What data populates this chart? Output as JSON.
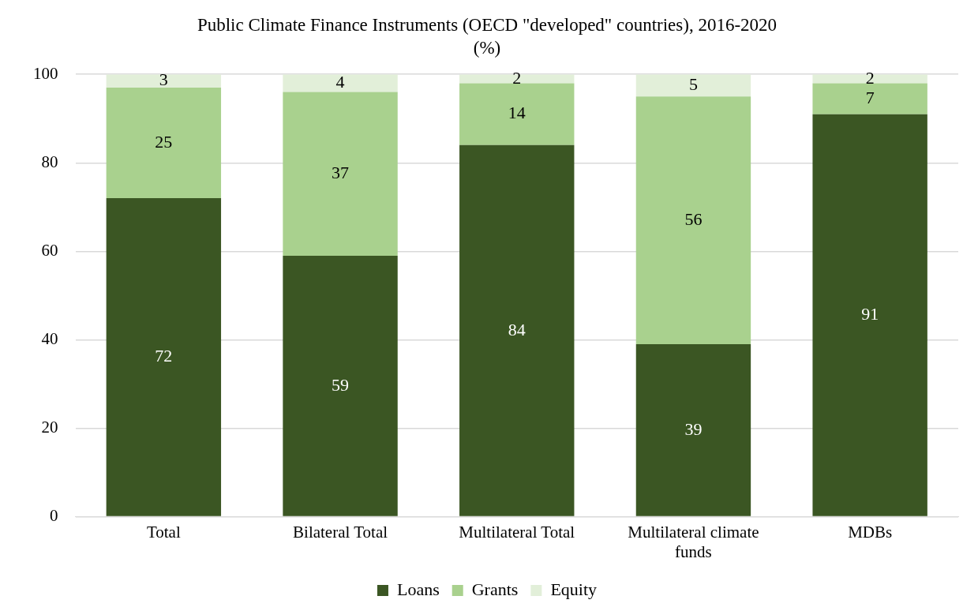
{
  "chart_data": {
    "type": "bar",
    "title": "Public Climate Finance Instruments (OECD \"developed\" countries), 2016-2020",
    "subtitle": "(%)",
    "categories": [
      "Total",
      "Bilateral Total",
      "Multilateral Total",
      "Multilateral climate funds",
      "MDBs"
    ],
    "series": [
      {
        "name": "Loans",
        "color": "#3b5623",
        "values": [
          72,
          59,
          84,
          39,
          91
        ]
      },
      {
        "name": "Grants",
        "color": "#a9d18e",
        "values": [
          25,
          37,
          14,
          56,
          7
        ]
      },
      {
        "name": "Equity",
        "color": "#e2efd9",
        "values": [
          3,
          4,
          2,
          5,
          2
        ]
      }
    ],
    "stacked": true,
    "ylim": [
      0,
      100
    ],
    "yticks": [
      0,
      20,
      40,
      60,
      80,
      100
    ],
    "grid": "y",
    "legend": "bottom",
    "data_labels": true
  }
}
